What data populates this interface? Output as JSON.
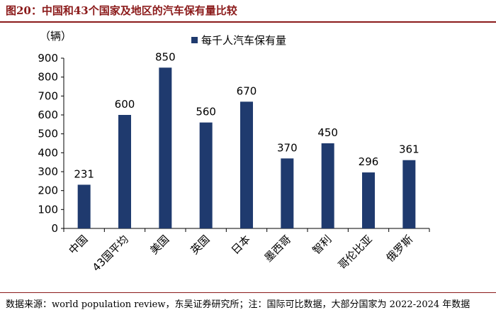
{
  "title": "图20：中国和43个国家及地区的汽车保有量比较",
  "source_note": "数据来源：world population review，东吴证券研究所；注：国际可比数据，大部分国家为 2022-2024 年数据",
  "chart_data": {
    "type": "bar",
    "ylabel": "（辆）",
    "ylim": [
      0,
      900
    ],
    "yticks": [
      0,
      100,
      200,
      300,
      400,
      500,
      600,
      700,
      800,
      900
    ],
    "categories": [
      "中国",
      "43国平均",
      "美国",
      "英国",
      "日本",
      "墨西哥",
      "智利",
      "哥伦比亚",
      "俄罗斯"
    ],
    "series": [
      {
        "name": "每千人汽车保有量",
        "values": [
          231,
          600,
          850,
          560,
          670,
          370,
          450,
          296,
          361
        ]
      }
    ],
    "legend_position": "top",
    "grid": false,
    "bar_color": "#1f3a6e"
  }
}
